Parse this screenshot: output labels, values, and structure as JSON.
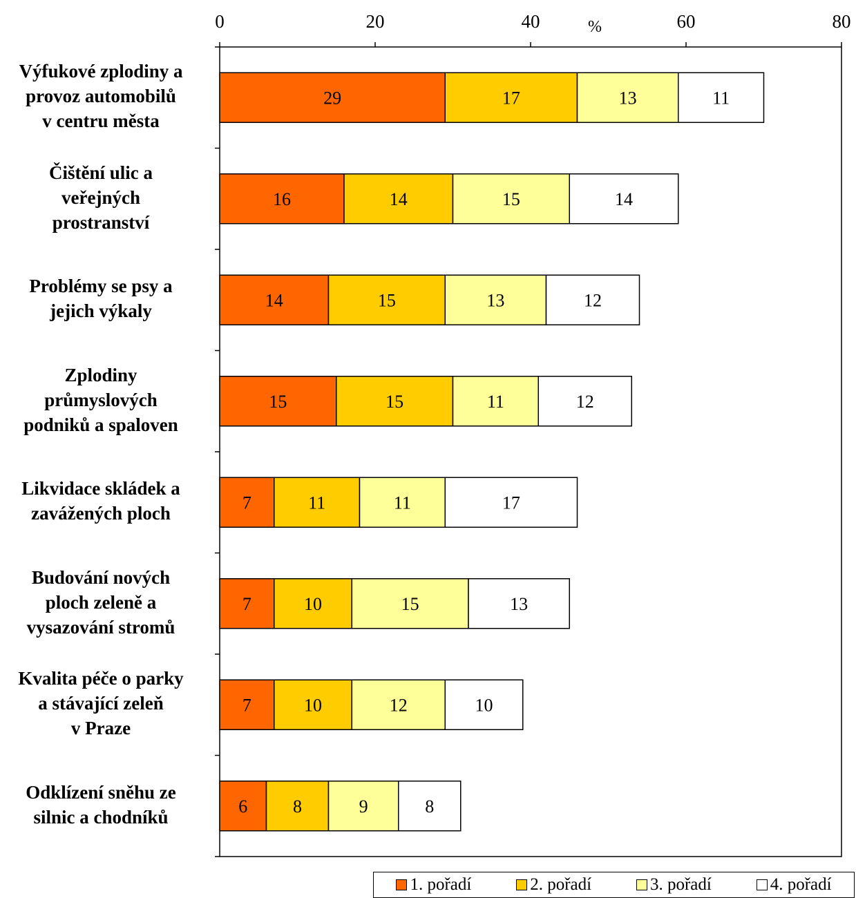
{
  "chart_data": {
    "type": "bar",
    "orientation": "horizontal",
    "stacked": true,
    "xlabel": "%",
    "xlim": [
      0,
      80
    ],
    "xticks": [
      0,
      20,
      40,
      60,
      80
    ],
    "categories": [
      [
        "Výfukové zplodiny a",
        "provoz automobilů",
        "v centru města"
      ],
      [
        "Čištění ulic a",
        "veřejných",
        "prostranství"
      ],
      [
        "Problémy se psy a",
        "jejich výkaly"
      ],
      [
        "Zplodiny",
        "průmyslových",
        "podniků a spaloven"
      ],
      [
        "Likvidace skládek a",
        "zavážených ploch"
      ],
      [
        "Budování nových",
        "ploch zeleně a",
        "vysazování stromů"
      ],
      [
        "Kvalita péče o parky",
        "a stávající zeleň",
        "v Praze"
      ],
      [
        "Odklízení sněhu ze",
        "silnic a chodníků"
      ]
    ],
    "series": [
      {
        "name": "1. pořadí",
        "color": "#FF6600",
        "values": [
          29,
          16,
          14,
          15,
          7,
          7,
          7,
          6
        ]
      },
      {
        "name": "2. pořadí",
        "color": "#FFCC00",
        "values": [
          17,
          14,
          15,
          15,
          11,
          10,
          10,
          8
        ]
      },
      {
        "name": "3. pořadí",
        "color": "#FFFF99",
        "values": [
          13,
          15,
          13,
          11,
          11,
          15,
          12,
          9
        ]
      },
      {
        "name": "4. pořadí",
        "color": "#FFFFFF",
        "values": [
          11,
          14,
          12,
          12,
          17,
          13,
          10,
          8
        ]
      }
    ],
    "legend_position": "bottom-right",
    "grid": false
  }
}
